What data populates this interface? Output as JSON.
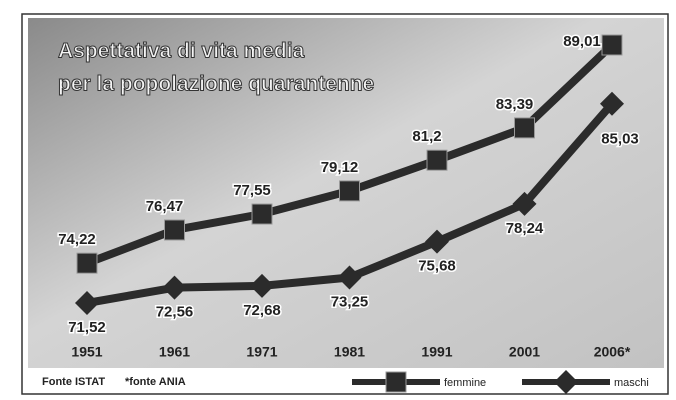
{
  "chart_data": {
    "type": "line",
    "title": [
      "Aspettativa di vita media",
      "per la popolazione quarantenne"
    ],
    "categories": [
      "1951",
      "1961",
      "1971",
      "1981",
      "1991",
      "2001",
      "2006*"
    ],
    "series": [
      {
        "name": "femmine",
        "color": "#2b2b2b",
        "marker": "square",
        "values": [
          74.22,
          76.47,
          77.55,
          79.12,
          81.2,
          83.39,
          89.01
        ],
        "value_labels": [
          "74,22",
          "76,47",
          "77,55",
          "79,12",
          "81,2",
          "83,39",
          "89,01"
        ]
      },
      {
        "name": "maschi",
        "color": "#2b2b2b",
        "marker": "diamond",
        "values": [
          71.52,
          72.56,
          72.68,
          73.25,
          75.68,
          78.24,
          85.03
        ],
        "value_labels": [
          "71,52",
          "72,56",
          "72,68",
          "73,25",
          "75,68",
          "78,24",
          "85,03"
        ]
      }
    ],
    "notes": [
      "Fonte ISTAT",
      "*fonte ANIA"
    ]
  }
}
